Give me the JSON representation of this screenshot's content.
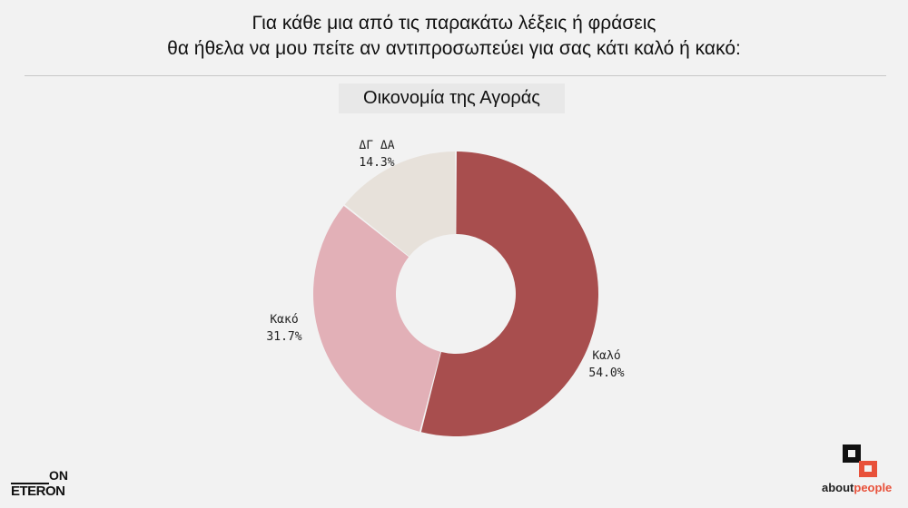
{
  "header": {
    "title_line1": "Για κάθε μια από τις παρακάτω λέξεις ή φράσεις",
    "title_line2": "θα ήθελα να μου πείτε αν αντιπροσωπεύει για σας κάτι καλό ή κακό:"
  },
  "chart_data": {
    "type": "pie",
    "donut": true,
    "title": "Οικονομία της Αγοράς",
    "slices": [
      {
        "label": "Καλό",
        "value": 54.0,
        "value_text": "54.0%",
        "color": "#a84e4e"
      },
      {
        "label": "Κακό",
        "value": 31.7,
        "value_text": "31.7%",
        "color": "#e2b0b7"
      },
      {
        "label": "ΔΓ ΔΑ",
        "value": 14.3,
        "value_text": "14.3%",
        "color": "#e7e1da"
      }
    ]
  },
  "logos": {
    "left_top": "ON",
    "left_bottom": "ETERON",
    "right_prefix": "about",
    "right_suffix": "people",
    "right_accent": "#e8513a"
  }
}
